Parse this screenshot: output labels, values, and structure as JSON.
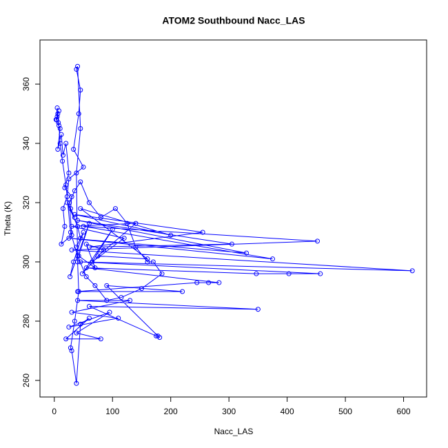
{
  "chart_data": {
    "type": "line",
    "title": "ATOM2 Southbound Nacc_LAS",
    "x_label": "Nacc_LAS",
    "y_label": "Theta (K)",
    "color": "#0000ff",
    "marker": "circle",
    "xlim": [
      -24.6,
      639.6
    ],
    "ylim": [
      254.4,
      374.9
    ],
    "xticks": [
      0,
      100,
      200,
      300,
      400,
      500,
      600
    ],
    "yticks": [
      260,
      280,
      300,
      320,
      340,
      360
    ],
    "x": [
      5,
      8,
      3,
      10,
      6,
      12,
      15,
      20,
      25,
      18,
      30,
      28,
      35,
      22,
      40,
      45,
      38,
      50,
      33,
      27,
      60,
      42,
      70,
      55,
      85,
      48,
      100,
      65,
      120,
      30,
      140,
      75,
      160,
      45,
      200,
      35,
      255,
      60,
      305,
      40,
      330,
      25,
      375,
      50,
      452,
      30,
      615,
      45,
      457,
      403,
      347,
      55,
      283,
      265,
      245,
      40,
      220,
      90,
      178,
      181,
      175,
      60,
      350,
      40,
      130,
      30,
      110,
      25,
      95,
      38,
      80,
      20,
      60,
      45,
      38,
      30,
      28,
      35,
      42,
      40,
      38,
      45,
      40,
      38,
      45,
      42,
      33,
      50,
      25,
      22,
      15,
      18,
      12,
      30,
      26,
      35,
      45,
      60,
      80,
      105,
      125,
      140,
      160,
      170,
      185,
      150,
      115,
      90,
      70,
      55,
      40,
      28,
      20,
      14,
      10,
      8,
      6,
      4,
      5,
      7
    ],
    "values": [
      349,
      351,
      348,
      345,
      338,
      343,
      336,
      340,
      330,
      325,
      322,
      318,
      315,
      320,
      312,
      308,
      305,
      310,
      300,
      295,
      313,
      302,
      298,
      306,
      304,
      296,
      311,
      300,
      308,
      312,
      313,
      302,
      301,
      318,
      309,
      316,
      310,
      305,
      306,
      314,
      303,
      308,
      301,
      312,
      307,
      304,
      297,
      300,
      296,
      296,
      296,
      298,
      293,
      293,
      293,
      290,
      290,
      292,
      275,
      274.5,
      275,
      285,
      284,
      287,
      287,
      283,
      281,
      278,
      283,
      276,
      274,
      274,
      281,
      279,
      259,
      270,
      271,
      280,
      290,
      300,
      330,
      345,
      366,
      365,
      358,
      350,
      338,
      332,
      328,
      322,
      318,
      312,
      306,
      309,
      320,
      324,
      327,
      320,
      315,
      318,
      313,
      305,
      300,
      300,
      296,
      291,
      288,
      287,
      292,
      295,
      302,
      310,
      326,
      334,
      340,
      346,
      350,
      348,
      352,
      347
    ]
  }
}
